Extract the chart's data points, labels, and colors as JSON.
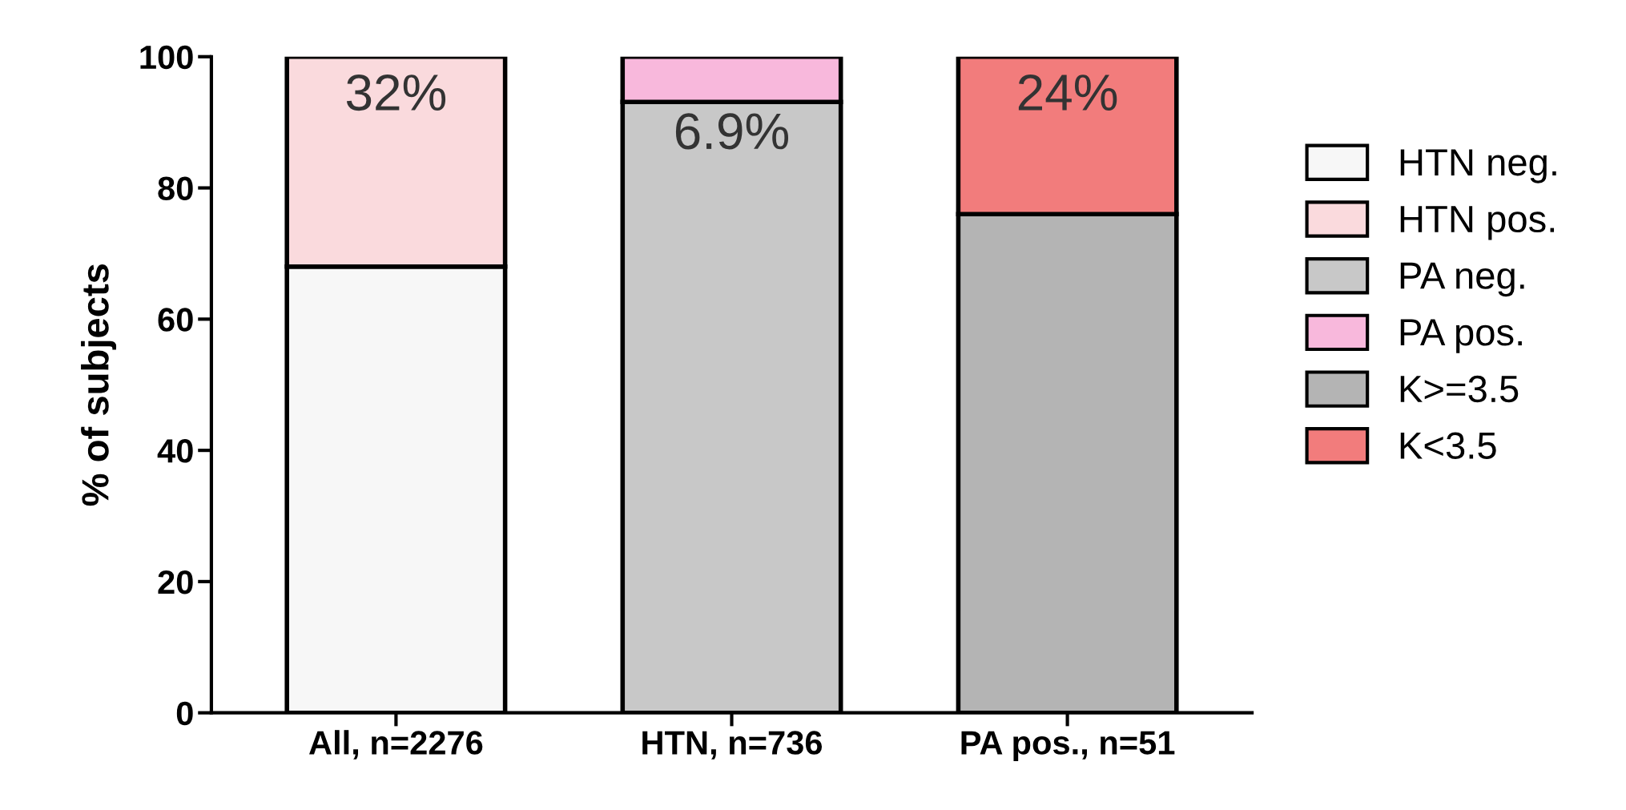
{
  "chart_data": {
    "type": "bar",
    "stacked": true,
    "ylabel": "% of subjects",
    "categories": [
      "All, n=2276",
      "HTN, n=736",
      "PA pos., n=51"
    ],
    "series": [
      {
        "name": "HTN neg.",
        "color": "#f7f7f7",
        "values": [
          68,
          null,
          null
        ]
      },
      {
        "name": "HTN pos.",
        "color": "#fadadd",
        "values": [
          32,
          null,
          null
        ],
        "value_labels": [
          "32%",
          null,
          null
        ]
      },
      {
        "name": "PA neg.",
        "color": "#c8c8c8",
        "values": [
          null,
          93.1,
          null
        ]
      },
      {
        "name": "PA pos.",
        "color": "#f8b8dc",
        "values": [
          null,
          6.9,
          null
        ],
        "value_labels": [
          null,
          "6.9%",
          null
        ]
      },
      {
        "name": "K>=3.5",
        "color": "#b4b4b4",
        "values": [
          null,
          null,
          76
        ]
      },
      {
        "name": "K<3.5",
        "color": "#f27c7c",
        "values": [
          null,
          null,
          24
        ],
        "value_labels": [
          null,
          null,
          "24%"
        ]
      }
    ],
    "ylim": [
      0,
      100
    ],
    "yticks": [
      0,
      20,
      40,
      60,
      80,
      100
    ],
    "grid": false,
    "legend": "right"
  }
}
